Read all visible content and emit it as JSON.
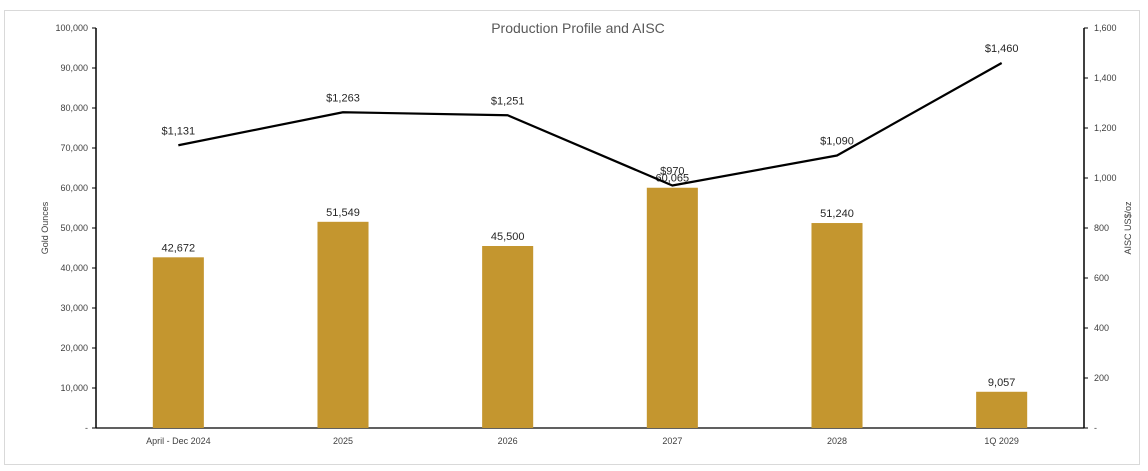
{
  "chart_data": {
    "type": "bar",
    "title": "Production Profile and AISC",
    "categories": [
      "April - Dec 2024",
      "2025",
      "2026",
      "2027",
      "2028",
      "1Q 2029"
    ],
    "series": [
      {
        "name": "",
        "type": "bar",
        "axis": "left",
        "values": [
          42672,
          51549,
          45500,
          60065,
          51240,
          9057
        ],
        "labels": [
          "42,672",
          "51,549",
          "45,500",
          "60,065",
          "51,240",
          "9,057"
        ],
        "color": "#c4962f"
      },
      {
        "name": "",
        "type": "line",
        "axis": "right",
        "values": [
          1131,
          1263,
          1251,
          970,
          1090,
          1460
        ],
        "labels": [
          "$1,131",
          "$1,263",
          "$1,251",
          "$970",
          "$1,090",
          "$1,460"
        ],
        "color": "#000000"
      }
    ],
    "ylabel": "Gold Ounces",
    "ylim": [
      0,
      100000
    ],
    "y_ticks": [
      "-",
      "10,000",
      "20,000",
      "30,000",
      "40,000",
      "50,000",
      "60,000",
      "70,000",
      "80,000",
      "90,000",
      "100,000"
    ],
    "y2label": "AISC US$/oz",
    "y2lim": [
      0,
      1600
    ],
    "y2_ticks": [
      "-",
      "200",
      "400",
      "600",
      "800",
      "1,000",
      "1,200",
      "1,400",
      "1,600"
    ],
    "grid": false,
    "legend": "none"
  }
}
